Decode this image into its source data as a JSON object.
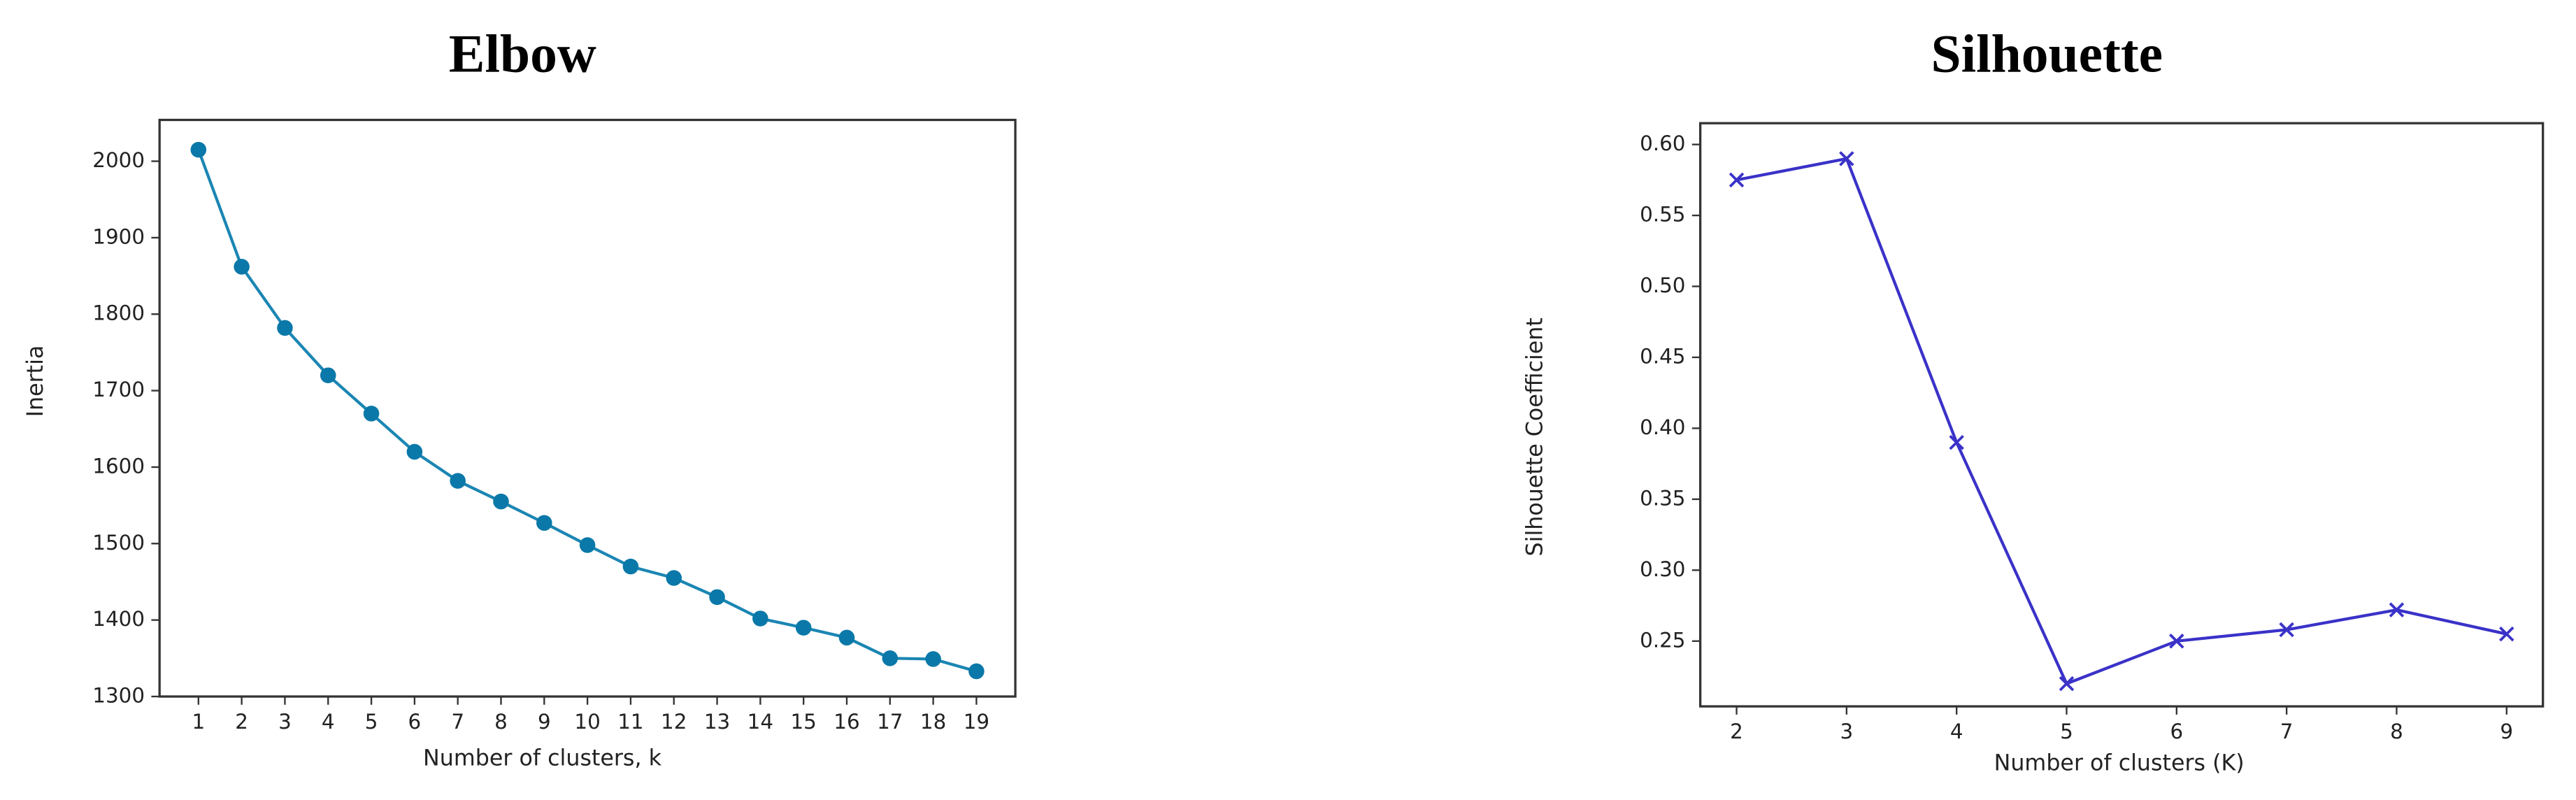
{
  "chart_data": [
    {
      "type": "line",
      "title": "Elbow",
      "x_label": "Number of clusters, k",
      "y_label": "Inertia",
      "x": [
        1,
        2,
        3,
        4,
        5,
        6,
        7,
        8,
        9,
        10,
        11,
        12,
        13,
        14,
        15,
        16,
        17,
        18,
        19
      ],
      "series": [
        {
          "color": "#1b86b3",
          "marker": "o",
          "values": [
            2015,
            1862,
            1782,
            1720,
            1670,
            1620,
            1582,
            1555,
            1527,
            1498,
            1470,
            1455,
            1430,
            1402,
            1390,
            1377,
            1350,
            1349,
            1333
          ]
        }
      ],
      "xlim": [
        0.1,
        19.9
      ],
      "ylim": [
        1300,
        2054
      ],
      "xticks": [
        1,
        2,
        3,
        4,
        5,
        6,
        7,
        8,
        9,
        10,
        11,
        12,
        13,
        14,
        15,
        16,
        17,
        18,
        19
      ],
      "yticks": [
        1300,
        1400,
        1500,
        1600,
        1700,
        1800,
        1900,
        2000
      ],
      "grid": false
    },
    {
      "type": "line",
      "title": "Silhouette",
      "x_label": "Number of clusters (K)",
      "y_label": "Silhouette Coefficient",
      "x": [
        2,
        3,
        4,
        5,
        6,
        7,
        8,
        9
      ],
      "series": [
        {
          "color": "#3a32c8",
          "marker": "x",
          "values": [
            0.575,
            0.59,
            0.39,
            0.22,
            0.25,
            0.258,
            0.272,
            0.255
          ]
        }
      ],
      "xlim": [
        1.67,
        9.33
      ],
      "ylim": [
        0.204,
        0.615
      ],
      "xticks": [
        2,
        3,
        4,
        5,
        6,
        7,
        8,
        9
      ],
      "yticks": [
        0.25,
        {
          "value": 0.3,
          "label": "0.30"
        },
        0.35,
        {
          "value": 0.4,
          "label": "0.40"
        },
        0.45,
        {
          "value": 0.5,
          "label": "0.50"
        },
        0.55,
        {
          "value": 0.6,
          "label": "0.60"
        }
      ],
      "grid": false
    }
  ]
}
